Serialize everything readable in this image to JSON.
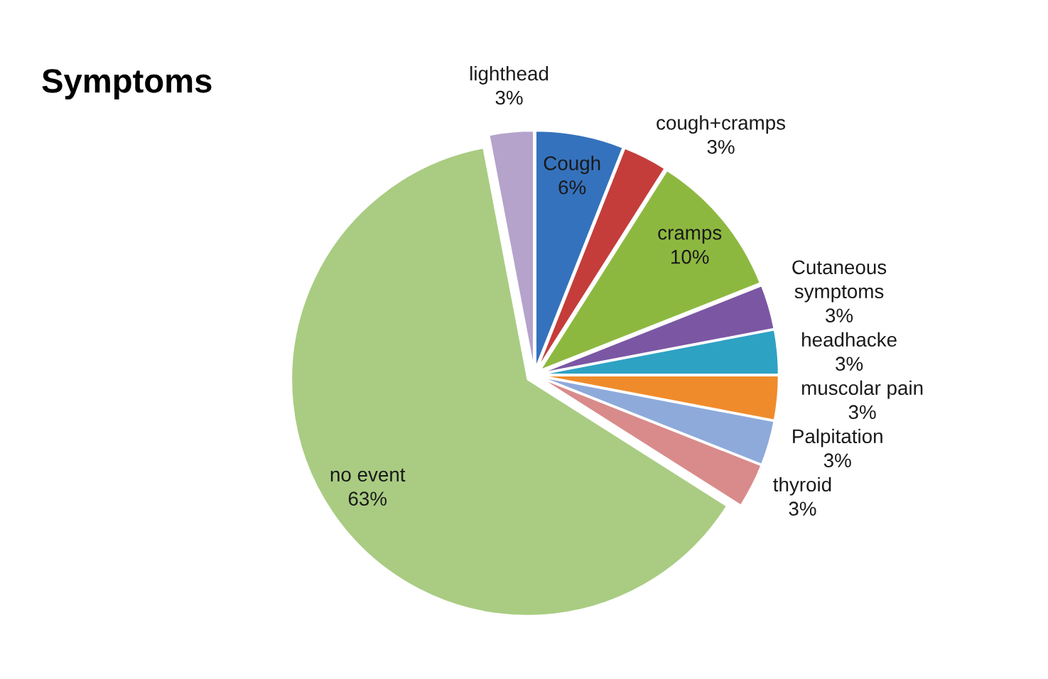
{
  "chart_data": {
    "type": "pie",
    "title": "Symptoms",
    "categories": [
      "Cough",
      "cough+cramps",
      "cramps",
      "Cutaneous symptoms",
      "headhacke",
      "muscolar pain",
      "Palpitation",
      "thyroid",
      "no event",
      "lighthead"
    ],
    "values": [
      6,
      3,
      10,
      3,
      3,
      3,
      3,
      3,
      63,
      3
    ],
    "value_labels": [
      "6%",
      "3%",
      "10%",
      "3%",
      "3%",
      "3%",
      "3%",
      "3%",
      "63%",
      "3%"
    ],
    "colors": [
      "#3572bd",
      "#c43d3b",
      "#8db840",
      "#7b57a3",
      "#2ea2c3",
      "#f08b2b",
      "#8eaadb",
      "#d98b8b",
      "#a9cc82",
      "#b5a3cb"
    ]
  }
}
